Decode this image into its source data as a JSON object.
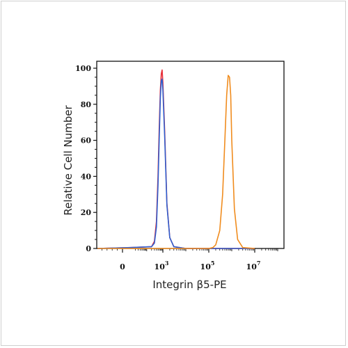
{
  "chart_data": {
    "type": "line",
    "xlabel": "Integrin β5-PE",
    "ylabel": "Relative Cell Number",
    "x_scale": "log (biexponential display)",
    "xlim": [
      -100,
      10000000
    ],
    "ylim": [
      0,
      100
    ],
    "y_ticks": [
      "0",
      "20",
      "40",
      "60",
      "80",
      "100"
    ],
    "x_ticks": [
      {
        "base": "0",
        "exp": ""
      },
      {
        "base": "10",
        "exp": "3"
      },
      {
        "base": "10",
        "exp": "5"
      },
      {
        "base": "10",
        "exp": "7"
      }
    ],
    "grid": false,
    "legend": "none",
    "series": [
      {
        "color": "#e8303a",
        "x": [
          -100,
          10,
          200,
          300,
          400,
          500,
          600,
          700,
          800,
          900,
          1000,
          1200,
          1500,
          2000,
          3000,
          10000,
          10000000
        ],
        "values": [
          0,
          0.5,
          1,
          4,
          15,
          40,
          68,
          88,
          97,
          99,
          92,
          65,
          25,
          6,
          1,
          0,
          0
        ]
      },
      {
        "color": "#2e5fcf",
        "x": [
          -100,
          10,
          200,
          300,
          400,
          500,
          600,
          700,
          800,
          900,
          1000,
          1200,
          1500,
          2000,
          3000,
          10000,
          10000000
        ],
        "values": [
          0,
          0.5,
          1,
          3,
          12,
          35,
          62,
          84,
          93,
          94,
          88,
          62,
          24,
          6,
          1,
          0,
          0
        ]
      },
      {
        "color": "#f08c1e",
        "x": [
          -100,
          100000,
          150000,
          200000,
          300000,
          400000,
          500000,
          600000,
          700000,
          800000,
          900000,
          1000000,
          1300000,
          1800000,
          3000000,
          10000000
        ],
        "values": [
          0,
          0,
          0.5,
          2,
          10,
          30,
          60,
          85,
          96,
          95,
          85,
          60,
          22,
          5,
          0.5,
          0
        ]
      }
    ]
  }
}
